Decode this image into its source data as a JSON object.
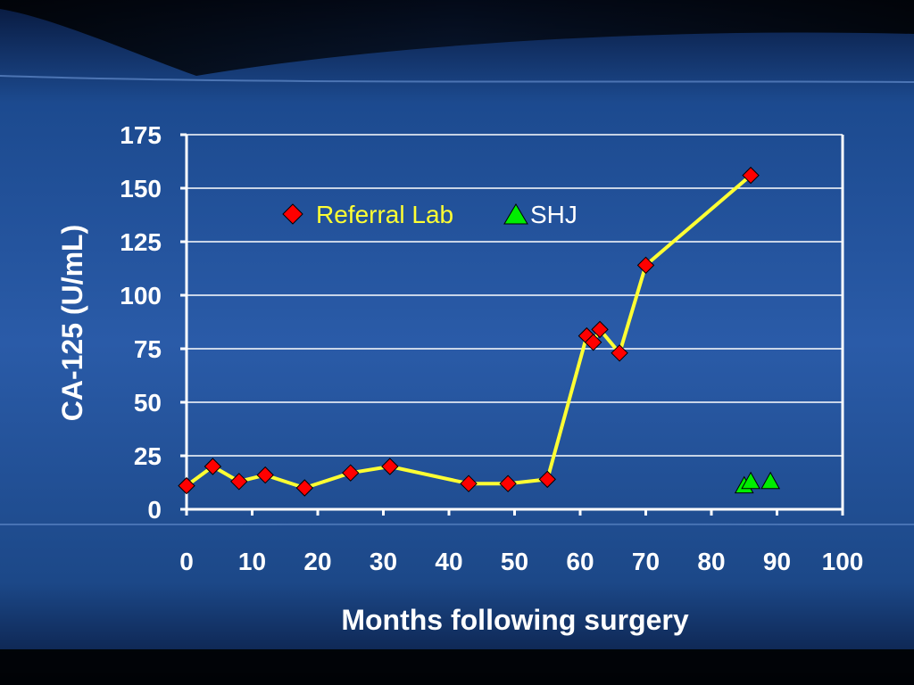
{
  "colors": {
    "line": "#ffff33",
    "referral_marker": "#ff0000",
    "shj_marker": "#00ee00",
    "text": "#ffffff",
    "gridline": "#ffffff",
    "legend_referral_text": "#ffff33",
    "legend_shj_text": "#ffffff"
  },
  "chart_data": {
    "type": "line",
    "title": "",
    "xlabel": "Months following surgery",
    "ylabel": "CA-125 (U/mL)",
    "xlim": [
      0,
      100
    ],
    "ylim": [
      0,
      175
    ],
    "x_ticks": [
      0,
      10,
      20,
      30,
      40,
      50,
      60,
      70,
      80,
      90,
      100
    ],
    "y_ticks": [
      0,
      25,
      50,
      75,
      100,
      125,
      150,
      175
    ],
    "grid": "horizontal",
    "legend_position": "top-left-inside",
    "series": [
      {
        "name": "Referral Lab",
        "marker": "diamond",
        "connected": true,
        "x": [
          0,
          4,
          8,
          12,
          18,
          25,
          31,
          43,
          49,
          55,
          61,
          62,
          63,
          66,
          70,
          86
        ],
        "y": [
          11,
          20,
          13,
          16,
          10,
          17,
          20,
          12,
          12,
          14,
          81,
          78,
          84,
          73,
          114,
          156
        ]
      },
      {
        "name": "SHJ",
        "marker": "triangle",
        "connected": false,
        "x": [
          85,
          86,
          89
        ],
        "y": [
          11,
          13,
          13
        ]
      }
    ]
  }
}
